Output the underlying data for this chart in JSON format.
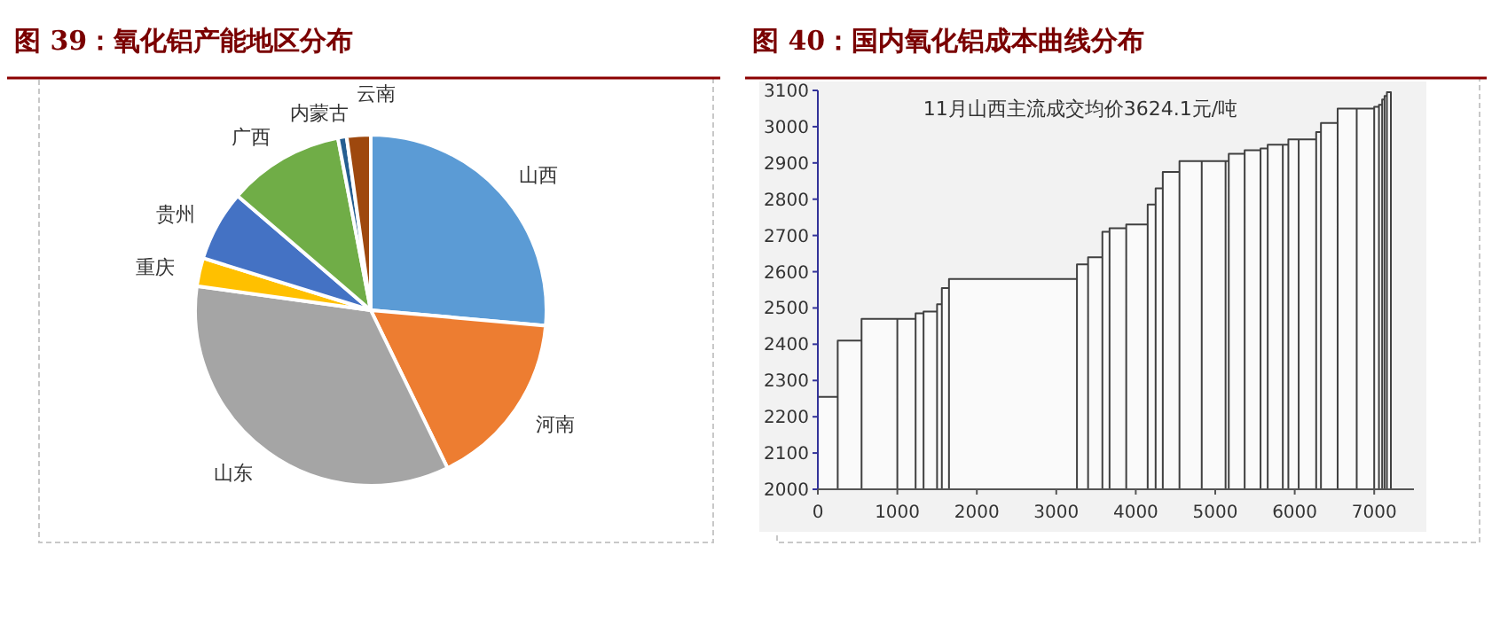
{
  "chart_data": [
    {
      "type": "pie",
      "title": "图 39：氧化铝产能地区分布",
      "categories": [
        "山西",
        "河南",
        "山东",
        "重庆",
        "贵州",
        "广西",
        "内蒙古",
        "云南"
      ],
      "values": [
        26.4,
        16.4,
        34.4,
        2.6,
        6.5,
        10.7,
        0.8,
        2.2
      ],
      "colors": [
        "#5b9bd5",
        "#ed7d31",
        "#a5a5a5",
        "#ffc000",
        "#4472c4",
        "#70ad47",
        "#255e91",
        "#9e480e"
      ]
    },
    {
      "type": "step",
      "title": "图 40：国内氧化铝成本曲线分布",
      "annotations": [
        "11月山西主流成交均价3624.1元/吨"
      ],
      "xlim": [
        0,
        7500
      ],
      "xticks": [
        0,
        1000,
        2000,
        3000,
        4000,
        5000,
        6000,
        7000
      ],
      "ylim": [
        2000,
        3100
      ],
      "yticks": [
        2000,
        2100,
        2200,
        2300,
        2400,
        2500,
        2600,
        2700,
        2800,
        2900,
        3000,
        3100
      ],
      "series": [
        {
          "type": "area",
          "color": "#404040",
          "x": [
            0,
            250,
            550,
            1000,
            1230,
            1330,
            1500,
            1560,
            1650,
            3260,
            3400,
            3580,
            3670,
            3880,
            4150,
            4250,
            4340,
            4550,
            4830,
            5130,
            5170,
            5370,
            5570,
            5660,
            5850,
            5920,
            6050,
            6270,
            6330,
            6540,
            6780,
            7000,
            7060,
            7100,
            7130,
            7160,
            7210
          ],
          "values": [
            2255,
            2410,
            2470,
            2470,
            2485,
            2490,
            2510,
            2555,
            2580,
            2620,
            2640,
            2710,
            2720,
            2730,
            2785,
            2830,
            2875,
            2905,
            2905,
            2905,
            2925,
            2935,
            2940,
            2950,
            2950,
            2965,
            2965,
            2985,
            3010,
            3050,
            3050,
            3055,
            3060,
            3075,
            3085,
            3095,
            3095
          ]
        }
      ]
    }
  ]
}
